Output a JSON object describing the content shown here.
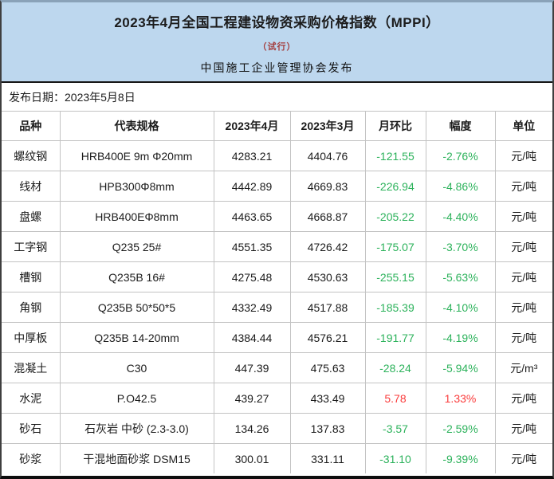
{
  "header": {
    "title": "2023年4月全国工程建设物资采购价格指数（MPPI）",
    "subtitle": "（试行）",
    "publisher": "中国施工企业管理协会发布",
    "release_date": "发布日期：2023年5月8日"
  },
  "table": {
    "columns": [
      "品种",
      "代表规格",
      "2023年4月",
      "2023年3月",
      "月环比",
      "幅度",
      "单位"
    ],
    "rows": [
      {
        "name": "螺纹钢",
        "spec": "HRB400E 9m Φ20mm",
        "apr": "4283.21",
        "mar": "4404.76",
        "mom": "-121.55",
        "pct": "-2.76%",
        "unit": "元/吨",
        "trend": "down"
      },
      {
        "name": "线材",
        "spec": "HPB300Φ8mm",
        "apr": "4442.89",
        "mar": "4669.83",
        "mom": "-226.94",
        "pct": "-4.86%",
        "unit": "元/吨",
        "trend": "down"
      },
      {
        "name": "盘螺",
        "spec": "HRB400EΦ8mm",
        "apr": "4463.65",
        "mar": "4668.87",
        "mom": "-205.22",
        "pct": "-4.40%",
        "unit": "元/吨",
        "trend": "down"
      },
      {
        "name": "工字钢",
        "spec": "Q235 25#",
        "apr": "4551.35",
        "mar": "4726.42",
        "mom": "-175.07",
        "pct": "-3.70%",
        "unit": "元/吨",
        "trend": "down"
      },
      {
        "name": "槽钢",
        "spec": "Q235B 16#",
        "apr": "4275.48",
        "mar": "4530.63",
        "mom": "-255.15",
        "pct": "-5.63%",
        "unit": "元/吨",
        "trend": "down"
      },
      {
        "name": "角钢",
        "spec": "Q235B 50*50*5",
        "apr": "4332.49",
        "mar": "4517.88",
        "mom": "-185.39",
        "pct": "-4.10%",
        "unit": "元/吨",
        "trend": "down"
      },
      {
        "name": "中厚板",
        "spec": "Q235B 14-20mm",
        "apr": "4384.44",
        "mar": "4576.21",
        "mom": "-191.77",
        "pct": "-4.19%",
        "unit": "元/吨",
        "trend": "down"
      },
      {
        "name": "混凝土",
        "spec": "C30",
        "apr": "447.39",
        "mar": "475.63",
        "mom": "-28.24",
        "pct": "-5.94%",
        "unit": "元/m³",
        "trend": "down"
      },
      {
        "name": "水泥",
        "spec": "P.O42.5",
        "apr": "439.27",
        "mar": "433.49",
        "mom": "5.78",
        "pct": "1.33%",
        "unit": "元/吨",
        "trend": "up"
      },
      {
        "name": "砂石",
        "spec": "石灰岩 中砂 (2.3-3.0)",
        "apr": "134.26",
        "mar": "137.83",
        "mom": "-3.57",
        "pct": "-2.59%",
        "unit": "元/吨",
        "trend": "down"
      },
      {
        "name": "砂浆",
        "spec": "干混地面砂浆 DSM15",
        "apr": "300.01",
        "mar": "331.11",
        "mom": "-31.10",
        "pct": "-9.39%",
        "unit": "元/吨",
        "trend": "down"
      }
    ]
  },
  "colors": {
    "header_bg": "#bdd7ee",
    "down_green": "#2cb25b",
    "up_red": "#fa3c3c",
    "subtitle_red": "#a33c3c"
  }
}
